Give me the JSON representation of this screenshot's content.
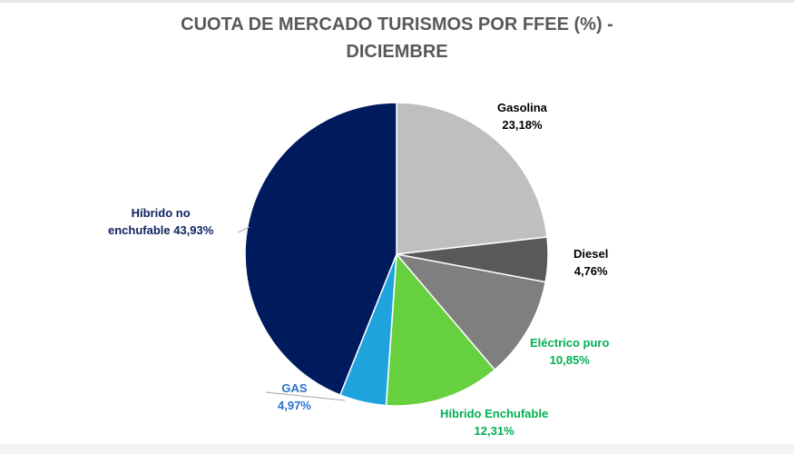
{
  "chart_data": {
    "type": "pie",
    "title_line1": "CUOTA DE MERCADO TURISMOS POR FFEE (%)  -",
    "title_line2": "DICIEMBRE",
    "start_angle": "12 o'clock, clockwise",
    "slices": [
      {
        "name": "Gasolina",
        "value": 23.18,
        "label": "23,18%",
        "color": "#bfbfbf",
        "label_color": "#000000"
      },
      {
        "name": "Diesel",
        "value": 4.76,
        "label": "4,76%",
        "color": "#595959",
        "label_color": "#000000"
      },
      {
        "name": "Eléctrico puro",
        "value": 10.85,
        "label": "10,85%",
        "color": "#7f7f7f",
        "label_color": "#00b050"
      },
      {
        "name": "Híbrido Enchufable",
        "value": 12.31,
        "label": "12,31%",
        "color": "#66d03f",
        "label_color": "#00b050"
      },
      {
        "name": "GAS",
        "value": 4.97,
        "label": "4,97%",
        "color": "#1ea3dd",
        "label_color": "#2872c8"
      },
      {
        "name": "Híbrido no enchufable",
        "value": 43.93,
        "label": "43,93%",
        "color": "#001a5e",
        "label_color": "#0f2460"
      }
    ],
    "no_enchufable_label_line1": "Híbrido no",
    "no_enchufable_label_line2": "enchufable 43,93%"
  }
}
